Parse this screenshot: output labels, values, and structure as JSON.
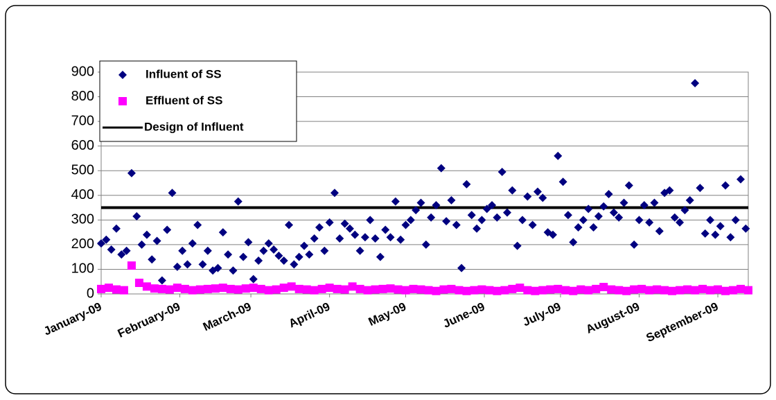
{
  "chart_data": {
    "type": "scatter",
    "xlim": [
      0,
      255
    ],
    "xticks": [
      {
        "value": 0,
        "label": "January-09"
      },
      {
        "value": 31,
        "label": "February-09"
      },
      {
        "value": 59,
        "label": "March-09"
      },
      {
        "value": 90,
        "label": "April-09"
      },
      {
        "value": 120,
        "label": "May-09"
      },
      {
        "value": 151,
        "label": "June-09"
      },
      {
        "value": 181,
        "label": "July-09"
      },
      {
        "value": 212,
        "label": "August-09"
      },
      {
        "value": 243,
        "label": "September-09"
      }
    ],
    "ylim": [
      0,
      900
    ],
    "yticks": [
      0,
      100,
      200,
      300,
      400,
      500,
      600,
      700,
      800,
      900
    ],
    "grid": true,
    "legend": "upper left",
    "series": [
      {
        "name": "Influent of SS",
        "color": "#000080",
        "marker": "diamond",
        "x": [
          0,
          2,
          4,
          6,
          8,
          10,
          12,
          14,
          16,
          18,
          20,
          22,
          24,
          26,
          28,
          30,
          32,
          34,
          36,
          38,
          40,
          42,
          44,
          46,
          48,
          50,
          52,
          54,
          56,
          58,
          60,
          62,
          64,
          66,
          68,
          70,
          72,
          74,
          76,
          78,
          80,
          82,
          84,
          86,
          88,
          90,
          92,
          94,
          96,
          98,
          100,
          102,
          104,
          106,
          108,
          110,
          112,
          114,
          116,
          118,
          120,
          122,
          124,
          126,
          128,
          130,
          132,
          134,
          136,
          138,
          140,
          142,
          144,
          146,
          148,
          150,
          152,
          154,
          156,
          158,
          160,
          162,
          164,
          166,
          168,
          170,
          172,
          174,
          176,
          178,
          180,
          182,
          184,
          186,
          188,
          190,
          192,
          194,
          196,
          198,
          200,
          202,
          204,
          206,
          208,
          210,
          212,
          214,
          216,
          218,
          220,
          222,
          224,
          226,
          228,
          230,
          232,
          234,
          236,
          238,
          240,
          242,
          244,
          246,
          248,
          250,
          252,
          254
        ],
        "values": [
          205,
          220,
          180,
          265,
          160,
          175,
          490,
          315,
          200,
          240,
          140,
          215,
          55,
          260,
          410,
          110,
          175,
          120,
          205,
          280,
          120,
          175,
          95,
          105,
          250,
          160,
          95,
          375,
          150,
          210,
          60,
          135,
          175,
          205,
          180,
          155,
          135,
          280,
          120,
          150,
          195,
          160,
          225,
          270,
          175,
          290,
          410,
          225,
          285,
          265,
          240,
          175,
          230,
          300,
          225,
          150,
          260,
          230,
          375,
          220,
          280,
          300,
          340,
          370,
          200,
          310,
          360,
          510,
          295,
          380,
          280,
          105,
          445,
          320,
          265,
          300,
          345,
          360,
          310,
          495,
          330,
          420,
          195,
          300,
          395,
          280,
          415,
          390,
          250,
          240,
          560,
          455,
          320,
          210,
          270,
          300,
          345,
          270,
          315,
          355,
          405,
          330,
          310,
          370,
          440,
          200,
          300,
          360,
          290,
          370,
          255,
          410,
          420,
          310,
          290,
          340,
          380,
          855,
          430,
          245,
          300,
          240,
          275,
          440,
          230,
          300,
          465,
          265
        ]
      },
      {
        "name": "Effluent of SS",
        "color": "#ff00ff",
        "marker": "square",
        "x": [
          0,
          3,
          6,
          9,
          12,
          15,
          18,
          21,
          24,
          27,
          30,
          33,
          36,
          39,
          42,
          45,
          48,
          51,
          54,
          57,
          60,
          63,
          66,
          69,
          72,
          75,
          78,
          81,
          84,
          87,
          90,
          93,
          96,
          99,
          102,
          105,
          108,
          111,
          114,
          117,
          120,
          123,
          126,
          129,
          132,
          135,
          138,
          141,
          144,
          147,
          150,
          153,
          156,
          159,
          162,
          165,
          168,
          171,
          174,
          177,
          180,
          183,
          186,
          189,
          192,
          195,
          198,
          201,
          204,
          207,
          210,
          213,
          216,
          219,
          222,
          225,
          228,
          231,
          234,
          237,
          240,
          243,
          246,
          249,
          252,
          255
        ],
        "values": [
          20,
          25,
          18,
          15,
          115,
          45,
          30,
          22,
          20,
          18,
          25,
          20,
          15,
          18,
          20,
          22,
          25,
          20,
          18,
          22,
          25,
          20,
          15,
          18,
          25,
          30,
          20,
          18,
          15,
          20,
          25,
          20,
          18,
          30,
          20,
          15,
          18,
          20,
          22,
          18,
          15,
          20,
          18,
          15,
          12,
          18,
          20,
          15,
          12,
          15,
          18,
          15,
          12,
          15,
          20,
          25,
          15,
          12,
          15,
          18,
          20,
          15,
          12,
          18,
          15,
          20,
          28,
          18,
          15,
          12,
          18,
          20,
          15,
          18,
          15,
          12,
          15,
          18,
          15,
          20,
          15,
          18,
          12,
          15,
          20,
          15
        ]
      },
      {
        "name": "Design of Influent",
        "color": "#000000",
        "marker": "line",
        "x": [
          0,
          255
        ],
        "values": [
          350,
          350
        ]
      }
    ]
  }
}
